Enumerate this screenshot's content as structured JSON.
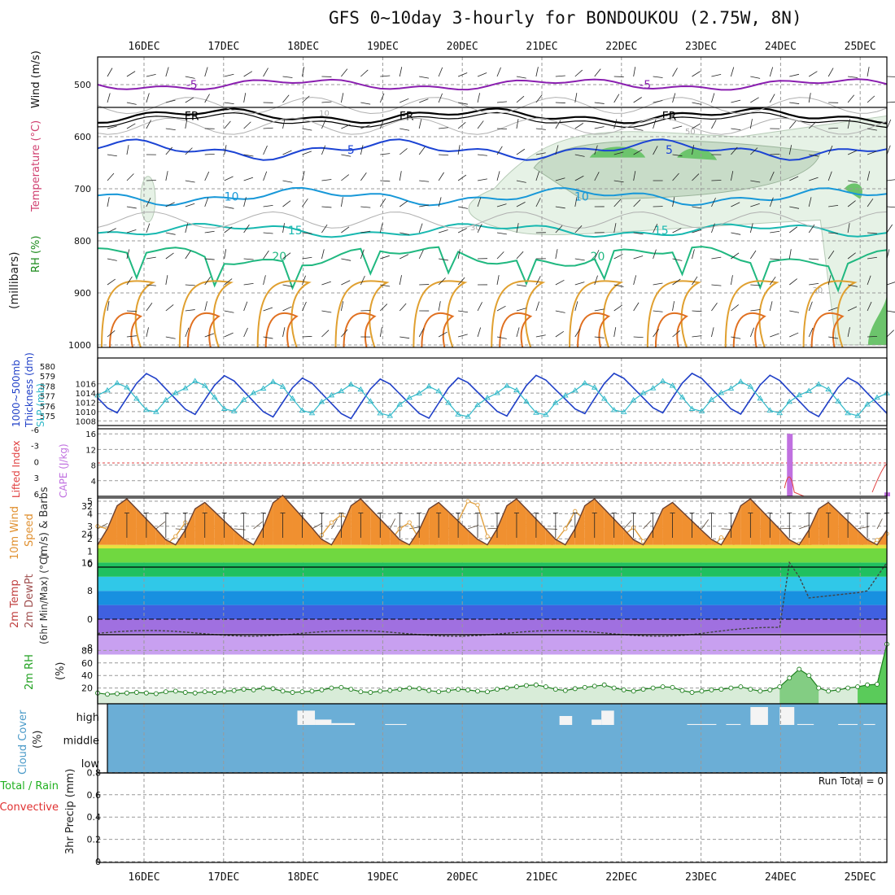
{
  "title": "GFS 0~10day 3-hourly for BONDOUKOU (2.75W, 8N)",
  "chart_data": {
    "type": "meteogram",
    "date_labels": [
      "16DEC",
      "17DEC",
      "18DEC",
      "19DEC",
      "20DEC",
      "21DEC",
      "22DEC",
      "23DEC",
      "24DEC",
      "25DEC"
    ],
    "steps": 82,
    "panels": {
      "upper_air": {
        "ylabels": [
          "Wind (m/s)",
          "Temperature (°C)",
          "RH (%)",
          "(millibars)"
        ],
        "pressure_ticks": [
          500,
          600,
          700,
          800,
          900,
          1000
        ],
        "isotherm_labels": [
          "-5",
          "FR",
          "5",
          "10",
          "15",
          "20"
        ],
        "rh_labels": [
          "10",
          "30",
          "50",
          "30"
        ],
        "isotherms_mb": {
          "minus5": 500,
          "freezing": 560,
          "plus5": 625,
          "plus10": 715,
          "plus15": 780,
          "plus20": 830
        },
        "moist_region": {
          "start_day": 4.4,
          "end_day": 9.3,
          "top_mb": 580,
          "bottom_mb": 780
        }
      },
      "slp_thickness": {
        "ylabel_left": "1000~500mb Thickness (dm)",
        "ylabel_right": "SLP (mb)",
        "thickness_ticks": [
          575,
          576,
          577,
          578,
          579,
          580
        ],
        "slp_ticks": [
          1008,
          1010,
          1012,
          1014,
          1016
        ],
        "slp_pattern": [
          1013.5,
          1014.5,
          1016,
          1015,
          1012.5,
          1010,
          1009.5,
          1012
        ],
        "thickness_pattern": [
          576.5,
          575.5,
          575,
          576.5,
          578,
          579,
          578.5,
          577.5
        ]
      },
      "cape_li": {
        "ylabel_left": "Lifted Index",
        "ylabel_right": "CAPE (J/kg)",
        "li_ticks": [
          "-6",
          "-3",
          "0",
          "3",
          "6"
        ],
        "cape_ticks": [
          4,
          8,
          12,
          16
        ],
        "cape_bars": [
          {
            "step": 71,
            "value": 16
          },
          {
            "step": 81,
            "value": 1
          }
        ]
      },
      "wind10m": {
        "ylabel": "10m Wind Speed & Barbs (m/s)",
        "ticks": [
          0,
          1,
          2,
          3,
          4,
          5
        ],
        "speed": [
          3.0,
          2.8,
          2.2,
          1.6,
          1.5,
          1.5,
          0.8,
          1.5,
          2.2,
          3.3,
          2.8,
          1.3,
          0.8,
          1.8,
          2.5,
          0.3,
          0.3,
          1.6,
          2.8,
          2.4,
          1.9,
          0.8,
          1.5,
          2.3,
          3.3,
          3.9,
          3.5,
          2.6,
          1.3,
          1.5,
          1.8,
          2.8,
          3.3,
          2.0,
          1.0,
          1.8,
          2.0,
          3.4,
          5.0,
          4.7,
          2.2,
          1.8,
          1.6,
          2.5,
          3.3,
          2.0,
          1.0,
          1.8,
          2.8,
          4.2,
          3.5,
          2.2,
          0.9,
          1.6,
          2.3,
          2.9,
          1.8,
          0.5,
          1.3,
          2.4,
          2.9,
          2.5,
          1.8,
          1.2,
          2.1,
          1.8,
          0.8,
          0.7,
          1.0,
          2.3,
          2.6,
          1.7,
          1.6,
          1.4,
          2.0,
          1.0,
          1.5,
          3.0,
          1.8,
          1.2,
          1.9,
          2.4
        ]
      },
      "temp_dewpt": {
        "ylabel": "2m Temp 2m DewPt (6hr Min/Max) (°C)",
        "ticks": [
          "-8",
          "0",
          "8",
          "16",
          "24",
          "32"
        ],
        "tmax": [
          34,
          33,
          35,
          34,
          33,
          34,
          34,
          33,
          34,
          33
        ],
        "tmin": 21,
        "dewpt_base": -4
      },
      "rh2m": {
        "ylabel": "2m RH (%)",
        "ticks": [
          20,
          40,
          60,
          80
        ],
        "rh": [
          12,
          10,
          11,
          12,
          13,
          12,
          11,
          14,
          15,
          13,
          12,
          14,
          13,
          15,
          16,
          18,
          17,
          20,
          19,
          15,
          13,
          14,
          15,
          17,
          20,
          21,
          18,
          14,
          13,
          15,
          16,
          18,
          20,
          19,
          16,
          14,
          16,
          18,
          17,
          15,
          14,
          18,
          20,
          22,
          24,
          25,
          22,
          18,
          16,
          19,
          21,
          23,
          25,
          20,
          17,
          15,
          18,
          20,
          22,
          21,
          16,
          13,
          15,
          17,
          18,
          20,
          22,
          18,
          15,
          17,
          22,
          36,
          50,
          40,
          20,
          15,
          17,
          20,
          22,
          25,
          26,
          90
        ]
      },
      "cloud": {
        "ylabel": "Cloud Cover (%)",
        "levels": [
          "high",
          "middle",
          "low"
        ],
        "high_segments": [
          {
            "start": 20.5,
            "end": 22.3,
            "value": 0.8
          },
          {
            "start": 22.3,
            "end": 24.0,
            "value": 0.3
          },
          {
            "start": 24.0,
            "end": 26.4,
            "value": 0.1
          },
          {
            "start": 29.5,
            "end": 31.7,
            "value": 0.05
          },
          {
            "start": 47.4,
            "end": 48.7,
            "value": 0.5
          },
          {
            "start": 50.7,
            "end": 51.7,
            "value": 0.3
          },
          {
            "start": 51.7,
            "end": 53.0,
            "value": 0.8
          },
          {
            "start": 60.5,
            "end": 63.5,
            "value": 0.05
          },
          {
            "start": 64.5,
            "end": 66.0,
            "value": 0.05
          },
          {
            "start": 67.0,
            "end": 68.8,
            "value": 1.0
          },
          {
            "start": 70.0,
            "end": 71.5,
            "value": 1.0
          },
          {
            "start": 71.8,
            "end": 73.5,
            "value": 0.05
          },
          {
            "start": 76.0,
            "end": 78.0,
            "value": 0.05
          },
          {
            "start": 78.6,
            "end": 79.8,
            "value": 0.05
          }
        ]
      },
      "precip": {
        "ylabel_left": "Total / Rain",
        "ylabel_left2": "Convective",
        "ylabel": "3hr Precip (mm)",
        "ticks": [
          "0",
          "0.2",
          "0.4",
          "0.6",
          "0.8"
        ],
        "run_total": "Run Total = 0"
      }
    }
  }
}
